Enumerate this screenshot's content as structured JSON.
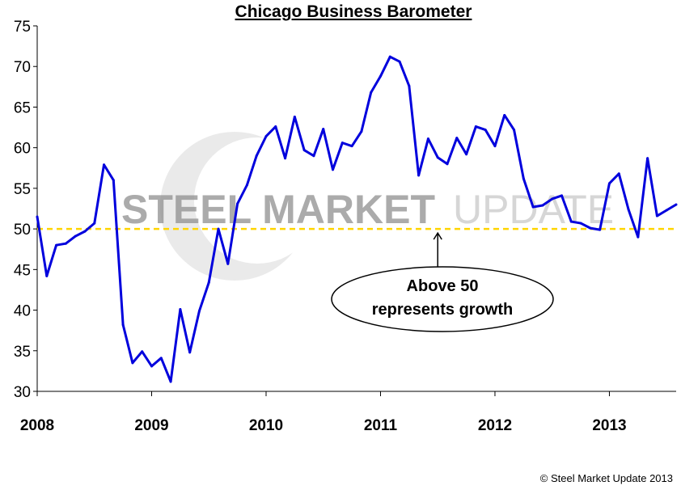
{
  "colors": {
    "line": "#0000dd",
    "threshold": "#ffd500",
    "axis": "#000000",
    "watermark_dark": "#8f8f8f",
    "watermark_light": "#cfcfcf"
  },
  "watermark": {
    "bold": "STEEL MARKET",
    "light": "UPDATE"
  },
  "annotation": {
    "lines": [
      "Above 50",
      "represents growth"
    ],
    "target_value": 50,
    "target_x": "2011-07"
  },
  "copyright": "© Steel Market Update 2013",
  "chart_data": {
    "type": "line",
    "title": "Chicago Business Barometer",
    "xlabel": "",
    "ylabel": "",
    "ylim": [
      30,
      75
    ],
    "yticks": [
      30,
      35,
      40,
      45,
      50,
      55,
      60,
      65,
      70,
      75
    ],
    "xticks": [
      "2008",
      "2009",
      "2010",
      "2011",
      "2012",
      "2013"
    ],
    "threshold": 50,
    "grid": false,
    "legend": "none",
    "x": [
      "2008-01",
      "2008-02",
      "2008-03",
      "2008-04",
      "2008-05",
      "2008-06",
      "2008-07",
      "2008-08",
      "2008-09",
      "2008-10",
      "2008-11",
      "2008-12",
      "2009-01",
      "2009-02",
      "2009-03",
      "2009-04",
      "2009-05",
      "2009-06",
      "2009-07",
      "2009-08",
      "2009-09",
      "2009-10",
      "2009-11",
      "2009-12",
      "2010-01",
      "2010-02",
      "2010-03",
      "2010-04",
      "2010-05",
      "2010-06",
      "2010-07",
      "2010-08",
      "2010-09",
      "2010-10",
      "2010-11",
      "2010-12",
      "2011-01",
      "2011-02",
      "2011-03",
      "2011-04",
      "2011-05",
      "2011-06",
      "2011-07",
      "2011-08",
      "2011-09",
      "2011-10",
      "2011-11",
      "2011-12",
      "2012-01",
      "2012-02",
      "2012-03",
      "2012-04",
      "2012-05",
      "2012-06",
      "2012-07",
      "2012-08",
      "2012-09",
      "2012-10",
      "2012-11",
      "2012-12",
      "2013-01",
      "2013-02",
      "2013-03",
      "2013-04",
      "2013-05",
      "2013-06",
      "2013-07",
      "2013-08"
    ],
    "values": [
      51.5,
      44.2,
      48.0,
      48.2,
      49.1,
      49.7,
      50.7,
      57.9,
      56.0,
      38.2,
      33.5,
      34.9,
      33.1,
      34.1,
      31.2,
      40.1,
      34.8,
      39.9,
      43.4,
      50.0,
      45.7,
      53.1,
      55.4,
      59.0,
      61.4,
      62.6,
      58.7,
      63.8,
      59.7,
      59.0,
      62.3,
      57.3,
      60.6,
      60.2,
      62.0,
      66.8,
      68.8,
      71.2,
      70.6,
      67.6,
      56.6,
      61.1,
      58.8,
      58.0,
      61.2,
      59.2,
      62.6,
      62.2,
      60.2,
      64.0,
      62.2,
      56.2,
      52.7,
      52.9,
      53.7,
      54.1,
      50.9,
      50.7,
      50.1,
      49.9,
      55.6,
      56.8,
      52.4,
      49.0,
      58.7,
      51.6,
      52.3,
      53.0
    ]
  }
}
